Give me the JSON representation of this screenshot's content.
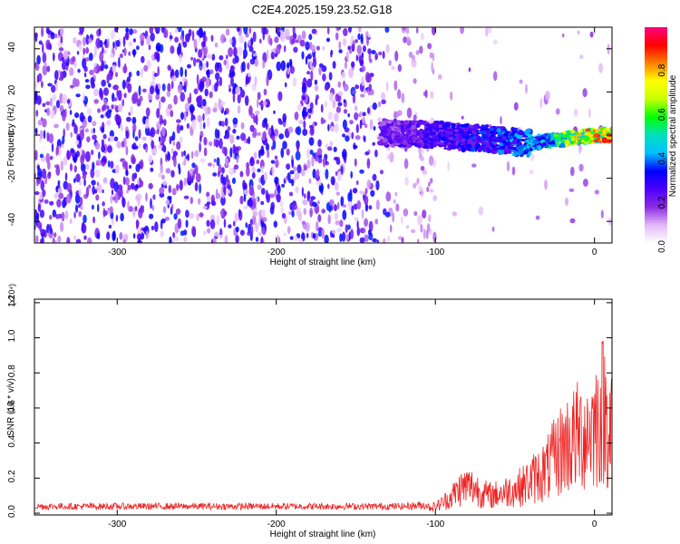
{
  "title": "C2E4.2025.159.23.52.G18",
  "chart_data": [
    {
      "type": "heatmap",
      "xlabel": "Height of straight line (km)",
      "ylabel": "Frequency (Hz)",
      "xlim": [
        -352,
        11
      ],
      "ylim": [
        -50,
        50
      ],
      "xticks": [
        -300,
        -200,
        -100,
        0
      ],
      "yticks": [
        -40,
        -20,
        0,
        20,
        40
      ],
      "grid": false,
      "colorbar": {
        "label": "Normalized spectral amplitude",
        "range": [
          0,
          0.98
        ],
        "ticks": [
          0.0,
          0.2,
          0.4,
          0.6,
          0.8
        ],
        "colors": [
          "#ffffff",
          "#e3b8f8",
          "#8a2be2",
          "#4b00ff",
          "#0000ff",
          "#00bfff",
          "#00e0c0",
          "#00ff00",
          "#c8ff00",
          "#ffff00",
          "#ff8000",
          "#ff0000",
          "#ff007f"
        ]
      },
      "signal_track": {
        "x": [
          -130,
          -100,
          -80,
          -60,
          -45,
          -30,
          -20,
          -10,
          0,
          11
        ],
        "freq": [
          1,
          0,
          -1,
          -2,
          -4,
          -3,
          -2,
          -1,
          0,
          0
        ],
        "amplitude": [
          0.25,
          0.3,
          0.35,
          0.4,
          0.45,
          0.5,
          0.7,
          0.85,
          0.95,
          0.9
        ]
      }
    },
    {
      "type": "line",
      "xlabel": "Height of straight line (km)",
      "ylabel": "SNR (10 * v/v)",
      "y_multiplier": "(x10⁴)",
      "xlim": [
        -352,
        11
      ],
      "ylim": [
        -0.01,
        1.22
      ],
      "xticks": [
        -300,
        -200,
        -100,
        0
      ],
      "yticks": [
        0.0,
        0.2,
        0.4,
        0.6,
        0.8,
        1.0,
        1.2
      ],
      "grid": false,
      "color": "#ee2222",
      "series": [
        {
          "x": [
            -352,
            -300,
            -250,
            -200,
            -150,
            -120,
            -110,
            -100,
            -95,
            -90,
            -85,
            -80,
            -75,
            -70,
            -65,
            -60,
            -55,
            -50,
            -45,
            -40,
            -35,
            -30,
            -25,
            -20,
            -15,
            -10,
            -5,
            0,
            5,
            11
          ],
          "values": [
            0.04,
            0.04,
            0.04,
            0.04,
            0.04,
            0.04,
            0.05,
            0.06,
            0.1,
            0.15,
            0.22,
            0.25,
            0.23,
            0.18,
            0.16,
            0.18,
            0.2,
            0.22,
            0.25,
            0.3,
            0.35,
            0.4,
            0.5,
            0.6,
            0.65,
            0.7,
            0.75,
            0.8,
            0.95,
            0.8
          ]
        }
      ]
    }
  ]
}
